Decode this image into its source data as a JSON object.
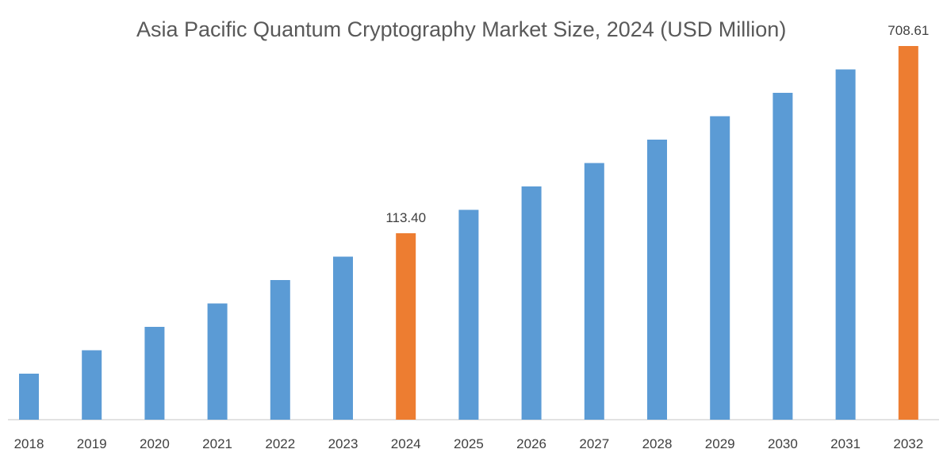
{
  "chart_data": {
    "type": "bar",
    "title": "Asia Pacific Quantum Cryptography Market Size, 2024 (USD Million)",
    "xlabel": "",
    "ylabel": "",
    "categories": [
      "2018",
      "2019",
      "2020",
      "2021",
      "2022",
      "2023",
      "2024",
      "2025",
      "2026",
      "2027",
      "2028",
      "2029",
      "2030",
      "2031",
      "2032"
    ],
    "values": [
      null,
      null,
      null,
      null,
      null,
      null,
      113.4,
      null,
      null,
      null,
      null,
      null,
      null,
      null,
      708.61
    ],
    "data_labels": {
      "2024": "113.40",
      "2032": "708.61"
    },
    "highlighted": [
      "2024",
      "2032"
    ],
    "colors": {
      "default": "#5B9BD5",
      "highlight": "#ED7D31",
      "axis": "#D9D9D9"
    },
    "grid": false,
    "legend": "none",
    "y_axis_visible": false
  }
}
